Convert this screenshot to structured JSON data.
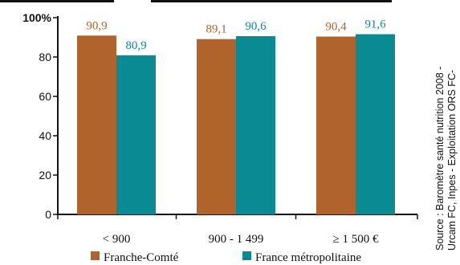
{
  "chart_data": {
    "type": "bar",
    "categories": [
      "< 900",
      "900 - 1 499",
      "≥ 1 500 €"
    ],
    "series": [
      {
        "name": "Franche-Comté",
        "values": [
          90.9,
          89.1,
          90.4
        ],
        "labels": [
          "90,9",
          "89,1",
          "90,4"
        ],
        "color": "#b0632a"
      },
      {
        "name": "France métropolitaine",
        "values": [
          80.9,
          90.6,
          91.6
        ],
        "labels": [
          "80,9",
          "90,6",
          "91,6"
        ],
        "color": "#0a8a93"
      }
    ],
    "ylim": [
      0,
      100
    ],
    "yticks": [
      {
        "value": 0,
        "label": "0"
      },
      {
        "value": 20,
        "label": "20"
      },
      {
        "value": 40,
        "label": "40"
      },
      {
        "value": 60,
        "label": "60"
      },
      {
        "value": 80,
        "label": "80"
      },
      {
        "value": 100,
        "label": "100%"
      }
    ],
    "title": "",
    "xlabel": "",
    "ylabel": "",
    "grid": false,
    "legend": "bottom"
  },
  "source": {
    "line1": "Source : Baromètre santé nutrition 2008 -",
    "line2": "Urcam FC, Inpes - Exploitation ORS FC-"
  }
}
